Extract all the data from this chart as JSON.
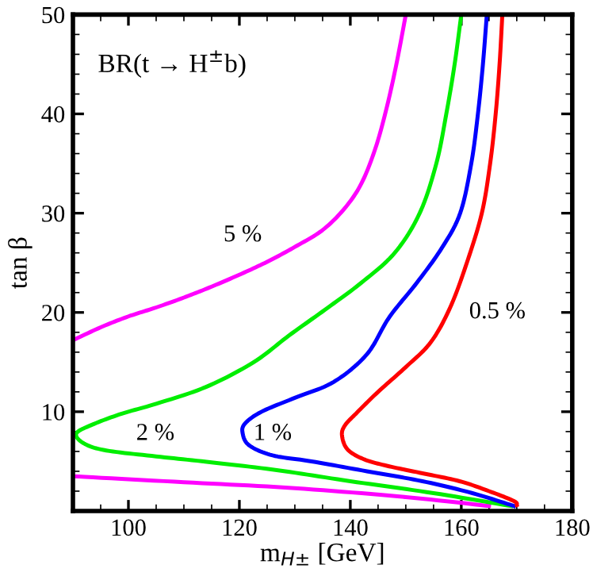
{
  "chart_data": {
    "type": "line",
    "xlabel": "m$_{H±}$ [GeV]",
    "ylabel": "tan β",
    "xlim": [
      90,
      180
    ],
    "ylim": [
      0,
      50
    ],
    "xticks": [
      100,
      120,
      140,
      160,
      180
    ],
    "yticks": [
      10,
      20,
      30,
      40,
      50
    ],
    "grid": false,
    "legend": false,
    "marker": "none",
    "line_style": "solid",
    "series": [
      {
        "name": "5 %",
        "color": "#ff00ff",
        "x": [
          150,
          148.3,
          146.5,
          144.5,
          142,
          139,
          135,
          130,
          125,
          120,
          115,
          110,
          105,
          100,
          95,
          90
        ],
        "values": [
          50,
          45,
          40.5,
          36.5,
          33,
          30.5,
          28.3,
          26.6,
          25.1,
          23.8,
          22.6,
          21.5,
          20.5,
          19.6,
          18.5,
          17.2
        ]
      },
      {
        "color": "#ff00ff",
        "x": [
          90,
          110,
          130,
          150,
          165
        ],
        "values": [
          3.5,
          2.9,
          2.3,
          1.4,
          0.5
        ]
      },
      {
        "name": "2 %",
        "color": "#00ee00",
        "x": [
          160,
          158.8,
          157.3,
          155.5,
          152.5,
          148,
          142,
          136,
          129,
          122.6,
          114,
          105,
          98.8,
          93.5,
          90.6,
          92,
          96,
          105,
          115,
          127,
          140,
          155,
          169
        ],
        "values": [
          50,
          45,
          40,
          35,
          30,
          26,
          23,
          20.5,
          17.7,
          15,
          12.5,
          10.8,
          9.8,
          8.7,
          7.8,
          6.8,
          6.1,
          5.5,
          4.9,
          4.1,
          3,
          1.8,
          0.5
        ]
      },
      {
        "name": "1 %",
        "color": "#0000ff",
        "x": [
          164.6,
          163.9,
          163,
          161.8,
          159.8,
          156.5,
          152,
          147,
          143,
          137,
          130,
          124,
          121,
          120.6,
          121.8,
          126,
          133,
          143,
          153,
          162,
          169.5
        ],
        "values": [
          50,
          45,
          40,
          35,
          30,
          26.5,
          23,
          19.5,
          15.8,
          13,
          11.4,
          10,
          8.8,
          7.8,
          6.6,
          5.6,
          5,
          4,
          3,
          1.8,
          0.5
        ]
      },
      {
        "name": "0.5 %",
        "color": "#ff0000",
        "x": [
          167.4,
          166.9,
          166.2,
          165.2,
          163.7,
          161,
          158,
          154.5,
          150,
          145,
          141,
          139,
          138.5,
          139.5,
          142.5,
          147,
          153,
          159.7,
          165,
          169.5,
          170
        ],
        "values": [
          50,
          45,
          40,
          35,
          30,
          25,
          20.5,
          17,
          14.5,
          12,
          9.8,
          8.6,
          7.6,
          6.2,
          5.2,
          4.5,
          3.8,
          3,
          2,
          1,
          0.6
        ]
      }
    ],
    "annotations": [
      "BR(t → H$^{±}$b)"
    ]
  }
}
